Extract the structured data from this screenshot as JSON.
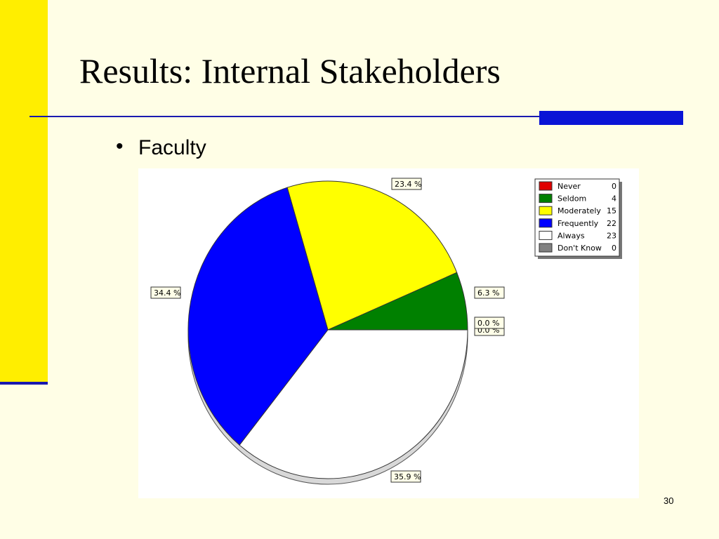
{
  "slide": {
    "title": "Results: Internal Stakeholders",
    "bullet": "Faculty",
    "page_number": "30"
  },
  "chart_data": {
    "type": "pie",
    "categories": [
      "Never",
      "Seldom",
      "Moderately",
      "Frequently",
      "Always",
      "Don't Know"
    ],
    "counts": [
      0,
      4,
      15,
      22,
      23,
      0
    ],
    "values": [
      0.0,
      6.3,
      23.4,
      34.4,
      35.9,
      0.0
    ],
    "value_labels": [
      "0.0 %",
      "6.3 %",
      "23.4 %",
      "34.4 %",
      "35.9 %",
      "0.0 %"
    ],
    "colors": [
      "#e00000",
      "#008000",
      "#ffff00",
      "#0000ff",
      "#ffffff",
      "#808080"
    ]
  }
}
